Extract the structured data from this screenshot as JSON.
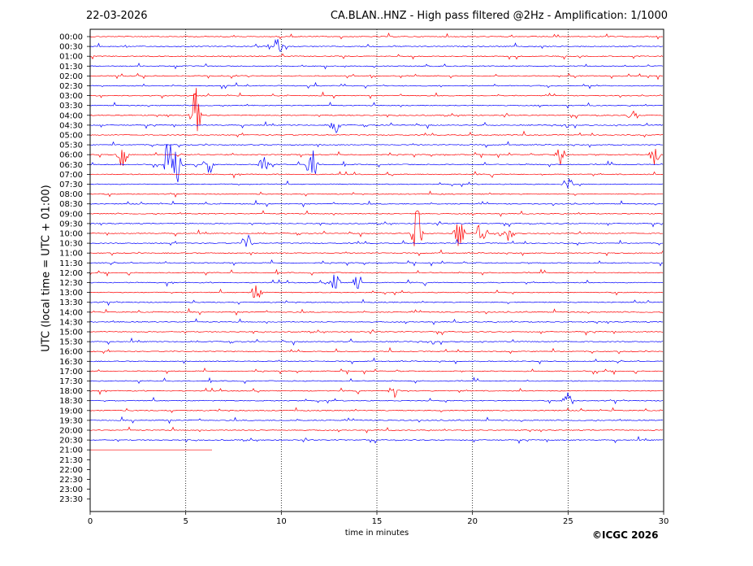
{
  "header": {
    "date": "22-03-2026",
    "title": "CA.BLAN..HNZ - High pass filtered @2Hz - Amplification: 1/1000"
  },
  "footer": {
    "copyright": "©ICGC 2026"
  },
  "colors": {
    "red_trace": "#ff0000",
    "blue_trace": "#0000ff",
    "grid": "#000000"
  },
  "chart_data": {
    "type": "line",
    "title": "CA.BLAN..HNZ - High pass filtered @2Hz - Amplification: 1/1000",
    "xlabel": "time in minutes",
    "ylabel": "UTC (local time = UTC + 01:00)",
    "xlim": [
      0,
      30
    ],
    "x_ticks": [
      0,
      5,
      10,
      15,
      20,
      25,
      30
    ],
    "y_ticks": [
      "00:00",
      "00:30",
      "01:00",
      "01:30",
      "02:00",
      "02:30",
      "03:00",
      "03:30",
      "04:00",
      "04:30",
      "05:00",
      "05:30",
      "06:00",
      "06:30",
      "07:00",
      "07:30",
      "08:00",
      "08:30",
      "09:00",
      "09:30",
      "10:00",
      "10:30",
      "11:00",
      "11:30",
      "12:00",
      "12:30",
      "13:00",
      "13:30",
      "14:00",
      "14:30",
      "15:00",
      "15:30",
      "16:00",
      "16:30",
      "17:00",
      "17:30",
      "18:00",
      "18:30",
      "19:00",
      "19:30",
      "20:00",
      "20:30",
      "21:00",
      "21:30",
      "22:00",
      "22:30",
      "23:00",
      "23:30"
    ],
    "grid_x_dotted": true,
    "trace_colors_alternating": [
      "red",
      "blue"
    ],
    "last_trace": {
      "label": "21:00",
      "ends_at_minute": 6.4,
      "color": "red"
    },
    "events": [
      {
        "row": "00:30",
        "minute": 9.8,
        "amp": 1.2
      },
      {
        "row": "04:00",
        "minute": 5.5,
        "amp": 3.2
      },
      {
        "row": "04:00",
        "minute": 28.4,
        "amp": 0.6
      },
      {
        "row": "04:30",
        "minute": 12.8,
        "amp": 1.0
      },
      {
        "row": "06:00",
        "minute": 1.7,
        "amp": 1.5
      },
      {
        "row": "06:00",
        "minute": 24.6,
        "amp": 1.0
      },
      {
        "row": "06:00",
        "minute": 29.5,
        "amp": 1.2
      },
      {
        "row": "06:30",
        "minute": 4.1,
        "amp": 3.0
      },
      {
        "row": "06:30",
        "minute": 4.6,
        "amp": 2.2
      },
      {
        "row": "06:30",
        "minute": 6.2,
        "amp": 1.4
      },
      {
        "row": "06:30",
        "minute": 9.1,
        "amp": 0.9
      },
      {
        "row": "06:30",
        "minute": 11.6,
        "amp": 2.0
      },
      {
        "row": "07:30",
        "minute": 25.0,
        "amp": 0.8
      },
      {
        "row": "10:00",
        "minute": 17.1,
        "amp": 3.4
      },
      {
        "row": "10:00",
        "minute": 19.3,
        "amp": 1.5
      },
      {
        "row": "10:00",
        "minute": 20.5,
        "amp": 2.0
      },
      {
        "row": "10:00",
        "minute": 21.9,
        "amp": 1.0
      },
      {
        "row": "10:30",
        "minute": 8.2,
        "amp": 1.2
      },
      {
        "row": "12:30",
        "minute": 12.8,
        "amp": 1.0
      },
      {
        "row": "12:30",
        "minute": 14.0,
        "amp": 1.0
      },
      {
        "row": "13:00",
        "minute": 8.7,
        "amp": 1.0
      },
      {
        "row": "18:00",
        "minute": 15.9,
        "amp": 0.8
      },
      {
        "row": "18:30",
        "minute": 25.0,
        "amp": 0.9
      }
    ]
  }
}
